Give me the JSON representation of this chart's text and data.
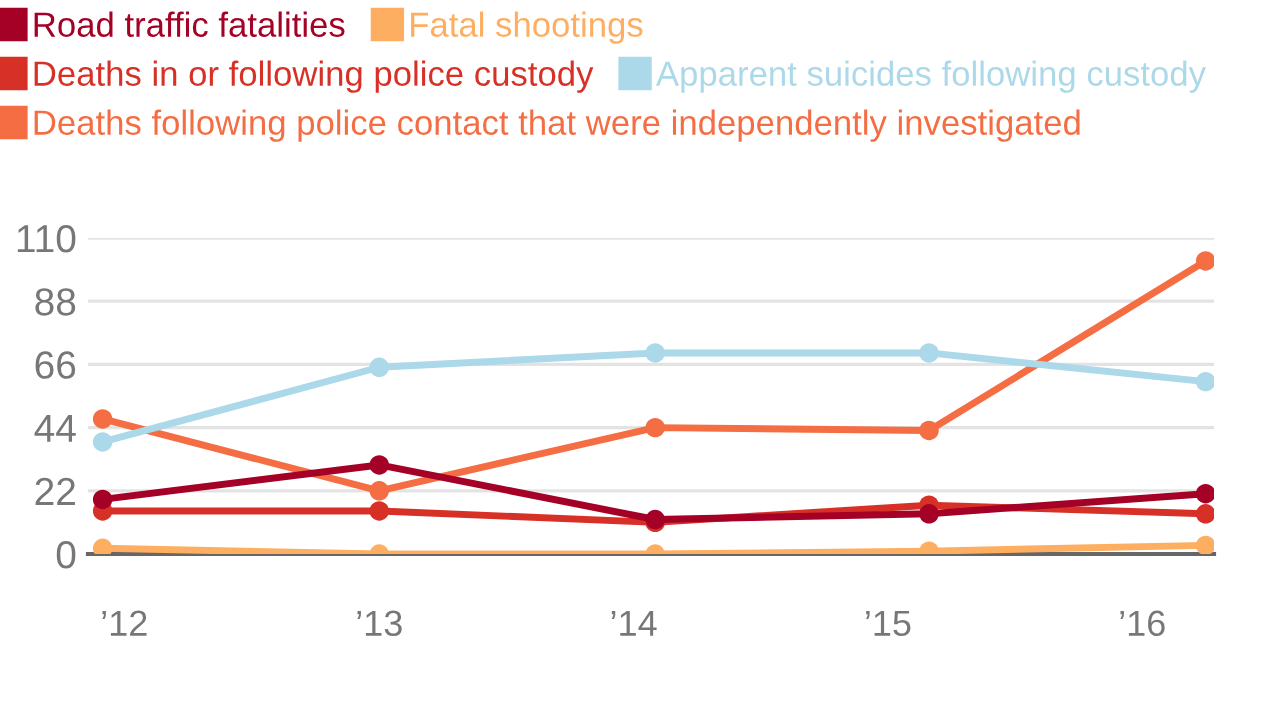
{
  "chart_data": {
    "type": "line",
    "x": [
      "2011-12-01",
      "2013-01-01",
      "2014-02-01",
      "2015-03-01",
      "2016-04-01"
    ],
    "series": [
      {
        "name": "Road traffic fatalities",
        "color": "#a50026",
        "values": [
          19,
          31,
          12,
          14,
          21
        ]
      },
      {
        "name": "Fatal shootings",
        "color": "#fdae61",
        "values": [
          2,
          0,
          0,
          1,
          3
        ]
      },
      {
        "name": "Deaths in or following police custody",
        "color": "#d73027",
        "values": [
          15,
          15,
          11,
          17,
          14
        ]
      },
      {
        "name": "Apparent suicides following custody",
        "color": "#abd9e9",
        "values": [
          39,
          65,
          70,
          70,
          60
        ]
      },
      {
        "name": "Deaths following police contact that were independently investigated",
        "color": "#f46d43",
        "values": [
          47,
          22,
          44,
          43,
          102
        ]
      }
    ],
    "xlim": [
      "2011-11-10",
      "2016-04-13"
    ],
    "xticks": [
      {
        "value": "2012-01-01",
        "label": "’12"
      },
      {
        "value": "2013-01-01",
        "label": "’13"
      },
      {
        "value": "2014-01-01",
        "label": "’14"
      },
      {
        "value": "2015-01-01",
        "label": "’15"
      },
      {
        "value": "2016-01-01",
        "label": "’16"
      }
    ],
    "ylim": [
      0,
      110
    ],
    "yticks": [
      0,
      22,
      44,
      66,
      88,
      110
    ],
    "grid": "y",
    "legend": "top",
    "marker": "circle",
    "line_style": "solid"
  }
}
